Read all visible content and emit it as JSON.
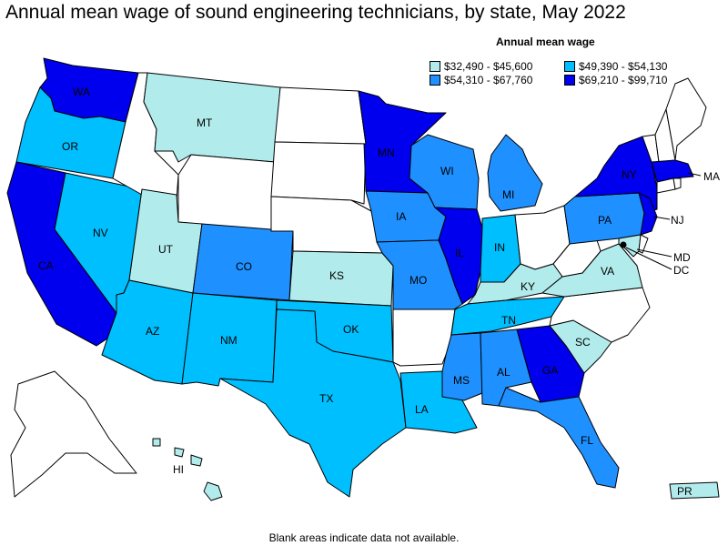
{
  "title": "Annual mean wage of sound engineering technicians, by state, May 2022",
  "legend": {
    "title": "Annual mean wage",
    "items": [
      {
        "label": "$32,490 - $45,600",
        "color": "#b2ebec"
      },
      {
        "label": "$49,390 - $54,130",
        "color": "#00bfff"
      },
      {
        "label": "$54,310 - $67,760",
        "color": "#1e90ff"
      },
      {
        "label": "$69,210 - $99,710",
        "color": "#0000ee"
      }
    ]
  },
  "footnote": "Blank areas indicate data not available.",
  "states": {
    "WA": {
      "label": "WA",
      "color": "#0000ee"
    },
    "OR": {
      "label": "OR",
      "color": "#00bfff"
    },
    "CA": {
      "label": "CA",
      "color": "#0000ee"
    },
    "NV": {
      "label": "NV",
      "color": "#00bfff"
    },
    "ID": {
      "color": "#ffffff"
    },
    "MT": {
      "label": "MT",
      "color": "#b2ebec"
    },
    "WY": {
      "color": "#ffffff"
    },
    "UT": {
      "label": "UT",
      "color": "#b2ebec"
    },
    "CO": {
      "label": "CO",
      "color": "#1e90ff"
    },
    "AZ": {
      "label": "AZ",
      "color": "#00bfff"
    },
    "NM": {
      "label": "NM",
      "color": "#00bfff"
    },
    "ND": {
      "color": "#ffffff"
    },
    "SD": {
      "color": "#ffffff"
    },
    "NE": {
      "color": "#ffffff"
    },
    "KS": {
      "label": "KS",
      "color": "#b2ebec"
    },
    "OK": {
      "label": "OK",
      "color": "#00bfff"
    },
    "TX": {
      "label": "TX",
      "color": "#00bfff"
    },
    "MN": {
      "label": "MN",
      "color": "#0000ee"
    },
    "IA": {
      "label": "IA",
      "color": "#1e90ff"
    },
    "MO": {
      "label": "MO",
      "color": "#1e90ff"
    },
    "AR": {
      "color": "#ffffff"
    },
    "LA": {
      "label": "LA",
      "color": "#00bfff"
    },
    "WI": {
      "label": "WI",
      "color": "#1e90ff"
    },
    "IL": {
      "label": "IL",
      "color": "#0000ee"
    },
    "MI": {
      "label": "MI",
      "color": "#1e90ff"
    },
    "IN": {
      "label": "IN",
      "color": "#00bfff"
    },
    "OH": {
      "color": "#ffffff"
    },
    "KY": {
      "label": "KY",
      "color": "#b2ebec"
    },
    "TN": {
      "label": "TN",
      "color": "#00bfff"
    },
    "MS": {
      "label": "MS",
      "color": "#1e90ff"
    },
    "AL": {
      "label": "AL",
      "color": "#1e90ff"
    },
    "GA": {
      "label": "GA",
      "color": "#0000ee"
    },
    "FL": {
      "label": "FL",
      "color": "#1e90ff"
    },
    "SC": {
      "label": "SC",
      "color": "#b2ebec"
    },
    "NC": {
      "color": "#ffffff"
    },
    "VA": {
      "label": "VA",
      "color": "#b2ebec"
    },
    "WV": {
      "color": "#ffffff"
    },
    "PA": {
      "label": "PA",
      "color": "#1e90ff"
    },
    "NY": {
      "label": "NY",
      "color": "#0000ee"
    },
    "NJ": {
      "label": "NJ",
      "color": "#0000ee"
    },
    "MD": {
      "label": "MD",
      "color": "#b2ebec"
    },
    "DC": {
      "label": "DC",
      "color": "#000000"
    },
    "DE": {
      "color": "#ffffff"
    },
    "MA": {
      "label": "MA",
      "color": "#0000ee"
    },
    "CT": {
      "color": "#ffffff"
    },
    "RI": {
      "color": "#ffffff"
    },
    "VT": {
      "color": "#ffffff"
    },
    "NH": {
      "color": "#ffffff"
    },
    "ME": {
      "color": "#ffffff"
    },
    "AK": {
      "color": "#ffffff"
    },
    "HI": {
      "label": "HI",
      "color": "#b2ebec"
    },
    "PR": {
      "label": "PR",
      "color": "#b2ebec"
    }
  }
}
